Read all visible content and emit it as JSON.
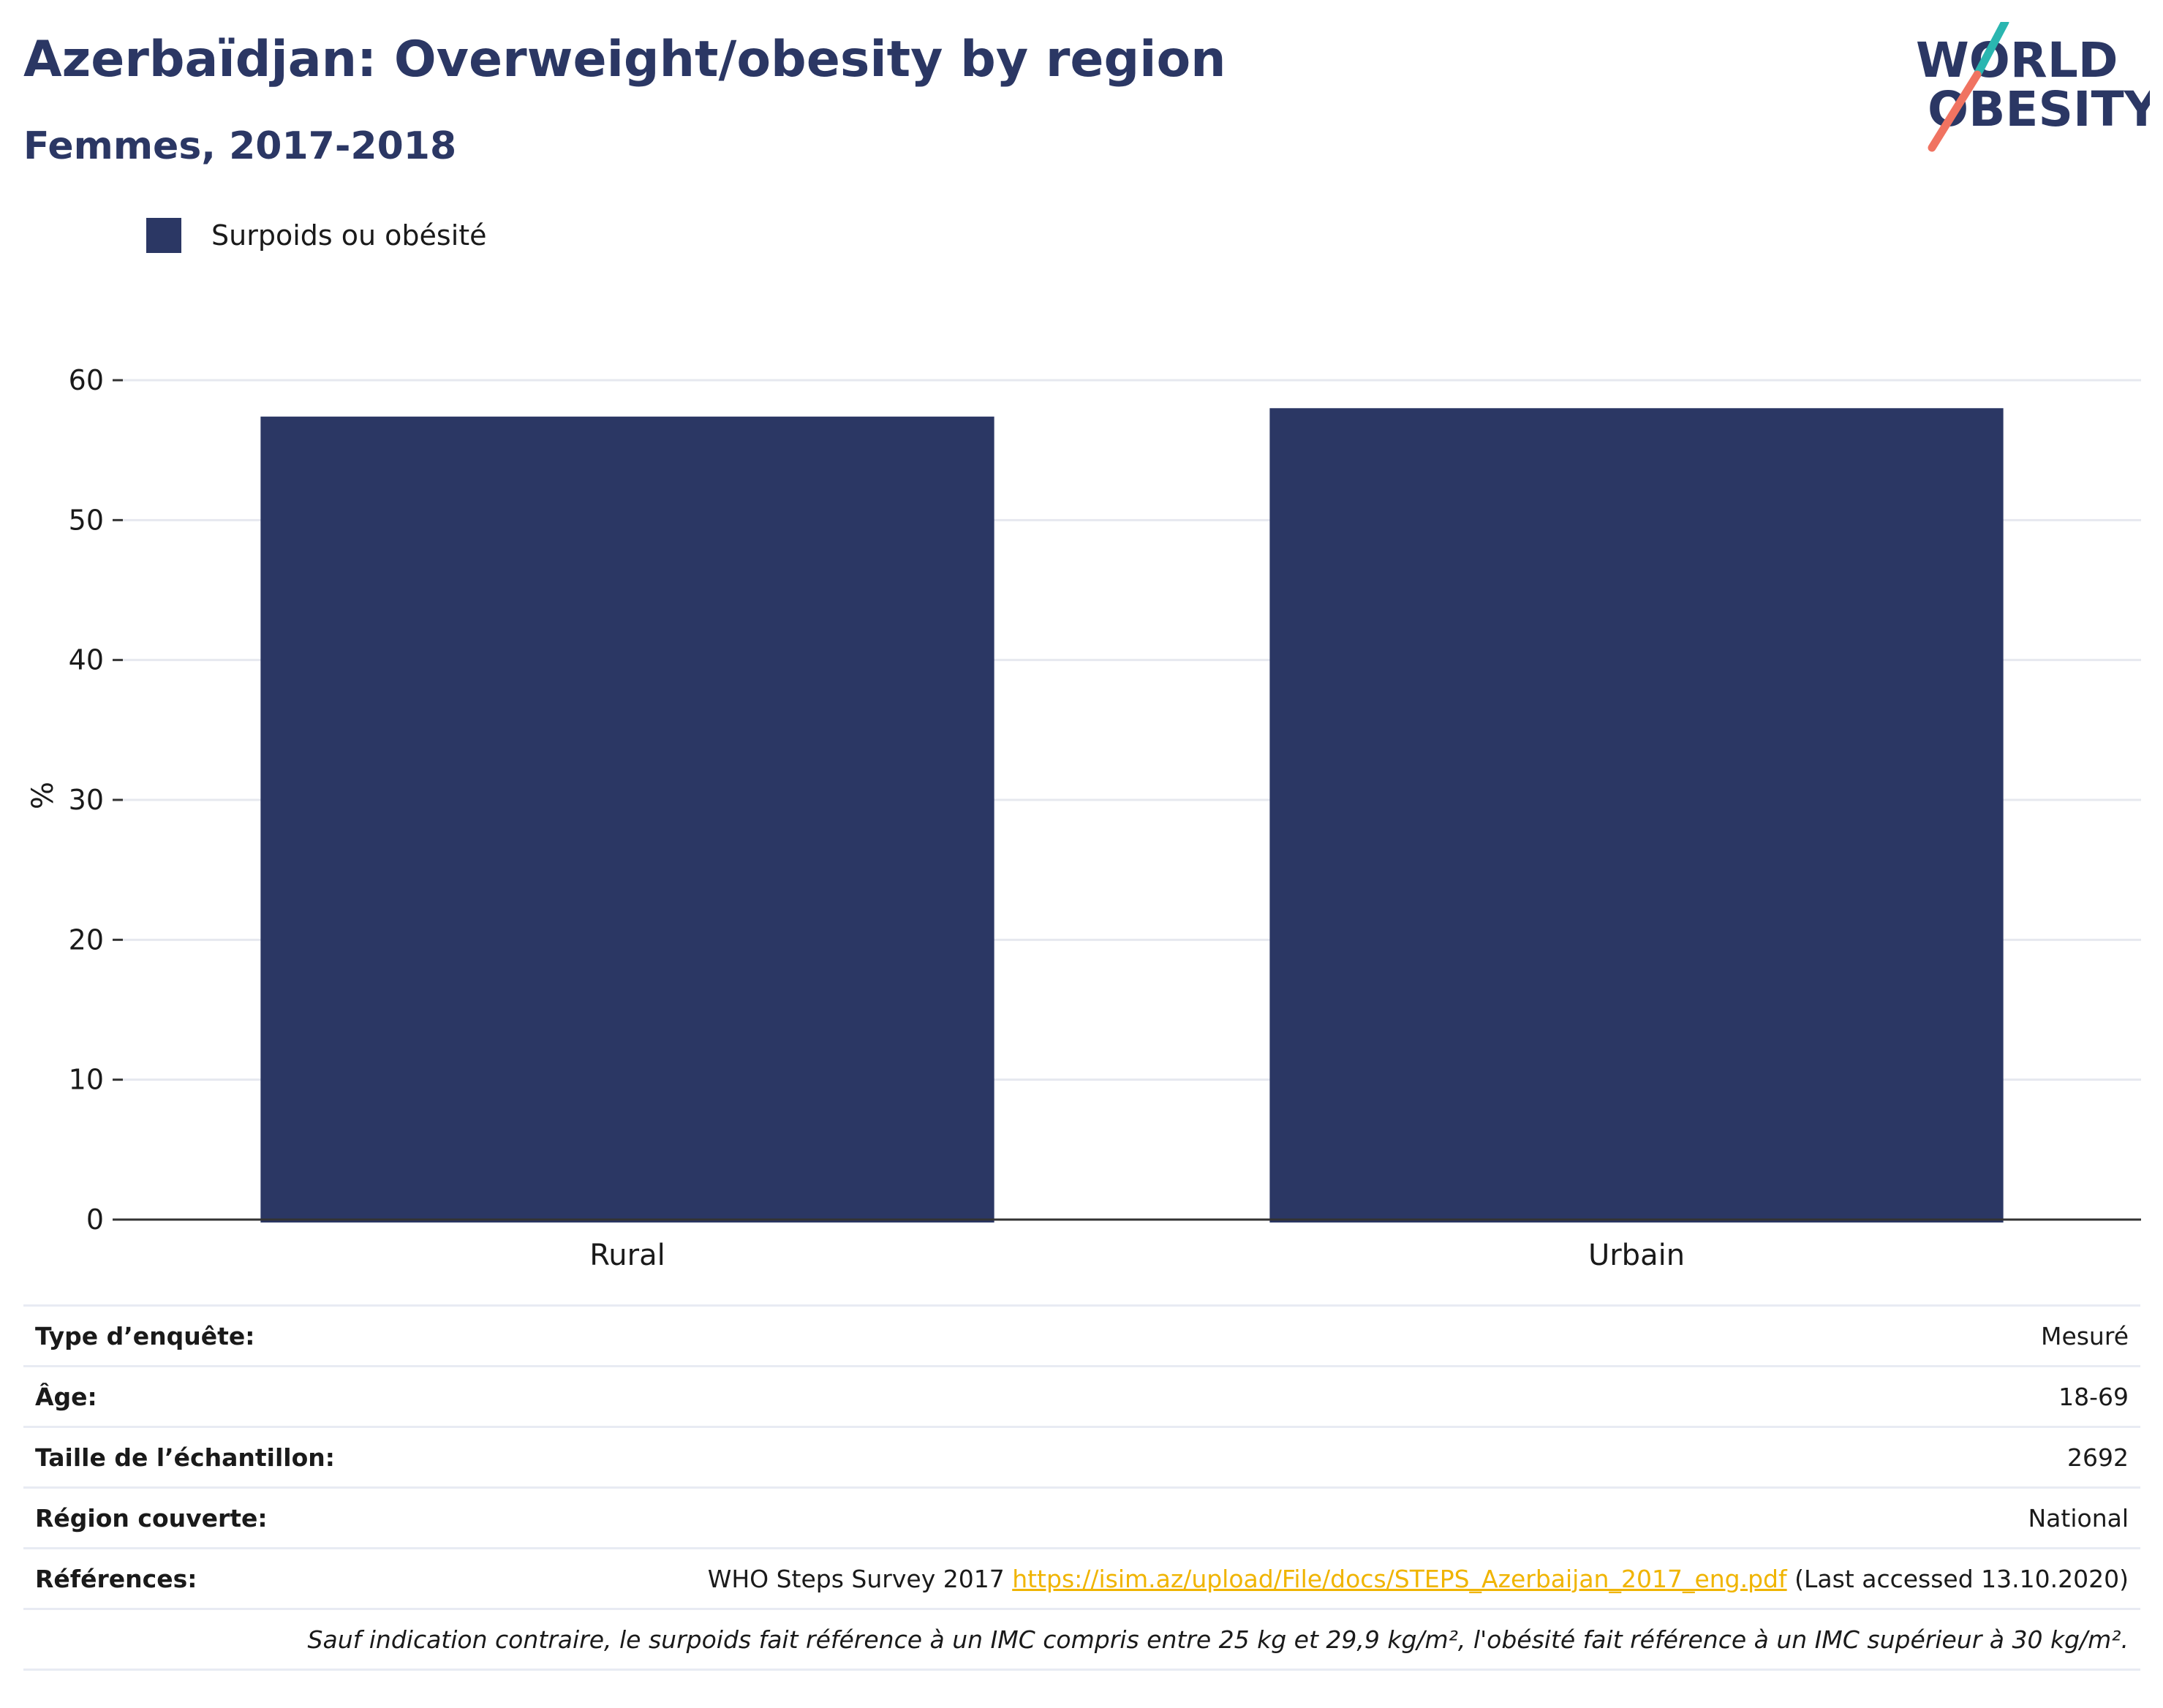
{
  "title": "Azerbaïdjan: Overweight/obesity by region",
  "subtitle": "Femmes, 2017-2018",
  "logo": {
    "line1": "WORLD",
    "line2": "OBESITY",
    "colors": {
      "text": "#2b3764",
      "slash_top": "#2ab6b0",
      "slash_bottom": "#f07361"
    }
  },
  "colors": {
    "bar": "#2b3764",
    "grid": "#e6e8ef",
    "axis": "#333333",
    "link": "#f0b400"
  },
  "chart_data": {
    "type": "bar",
    "categories": [
      "Rural",
      "Urbain"
    ],
    "series": [
      {
        "name": "Surpoids ou obésité",
        "values": [
          57.4,
          58.0
        ]
      }
    ],
    "ylabel": "%",
    "xlabel": "",
    "ylim": [
      0,
      60
    ],
    "yticks": [
      0,
      10,
      20,
      30,
      40,
      50,
      60
    ],
    "grid": true,
    "legend_position": "top-left"
  },
  "info": {
    "survey_type": {
      "label": "Type d’enquête:",
      "value": "Mesuré"
    },
    "age": {
      "label": "Âge:",
      "value": "18-69"
    },
    "sample_size": {
      "label": "Taille de l’échantillon:",
      "value": "2692"
    },
    "region": {
      "label": "Région couverte:",
      "value": "National"
    },
    "references": {
      "label": "Références:",
      "prefix": "WHO Steps Survey 2017",
      "link": "https://isim.az/upload/File/docs/STEPS_Azerbaijan_2017_eng.pdf",
      "suffix": "(Last accessed 13.10.2020)"
    },
    "note": "Sauf indication contraire, le surpoids fait référence à un IMC compris entre 25 kg et 29,9 kg/m², l'obésité fait référence à un IMC supérieur à 30 kg/m²."
  }
}
